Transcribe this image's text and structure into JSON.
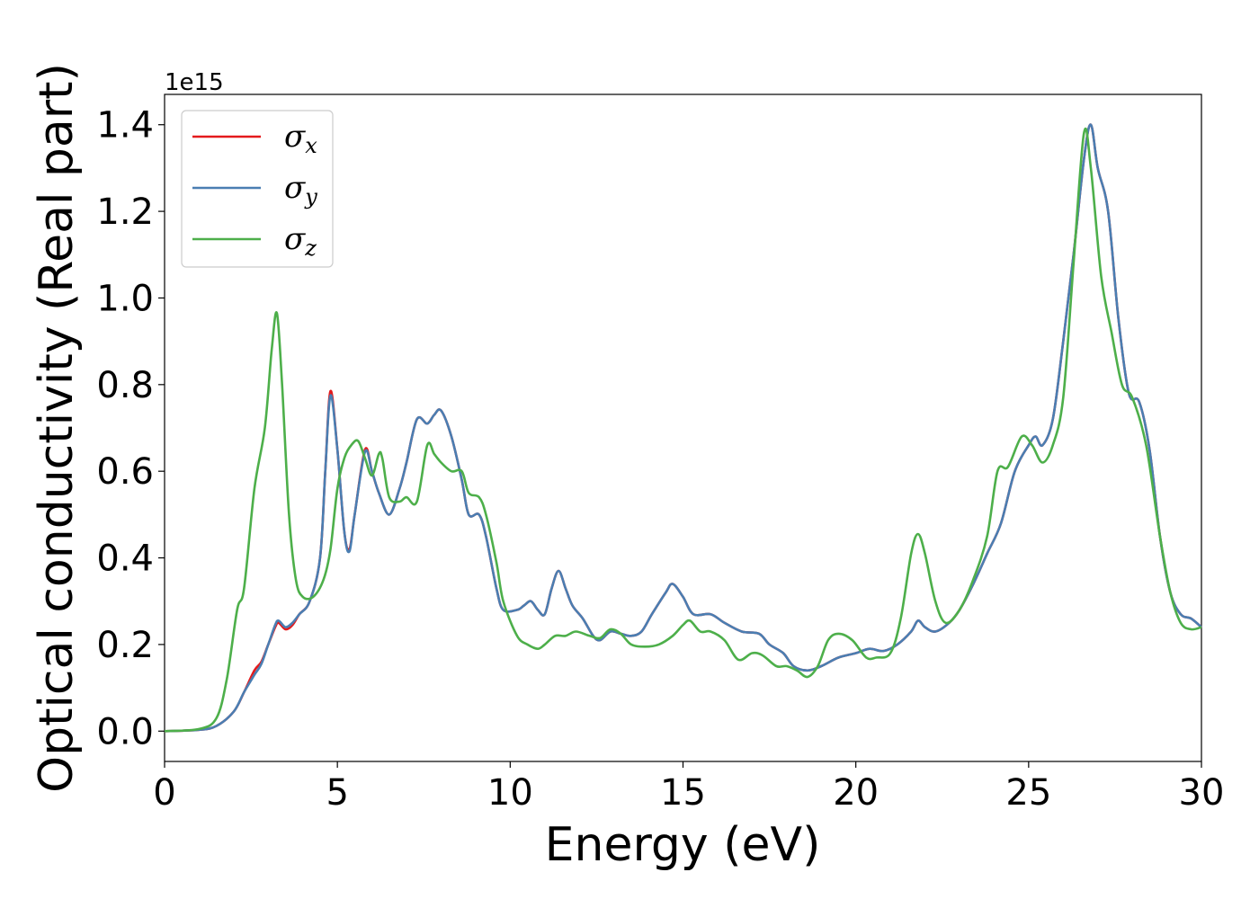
{
  "chart_data": {
    "type": "line",
    "xlabel": "Energy (eV)",
    "ylabel": "Optical conductivity (Real part)",
    "y_offset_label": "1e15",
    "xlim": [
      0,
      30
    ],
    "ylim": [
      -0.07,
      1.47
    ],
    "xticks": [
      0,
      5,
      10,
      15,
      20,
      25,
      30
    ],
    "xtick_labels": [
      "0",
      "5",
      "10",
      "15",
      "20",
      "25",
      "30"
    ],
    "yticks": [
      0.0,
      0.2,
      0.4,
      0.6,
      0.8,
      1.0,
      1.2,
      1.4
    ],
    "ytick_labels": [
      "0.0",
      "0.2",
      "0.4",
      "0.6",
      "0.8",
      "1.0",
      "1.2",
      "1.4"
    ],
    "grid": false,
    "legend_position": "top-left",
    "series": [
      {
        "name": "σx",
        "legend_symbol": "σ",
        "legend_sub": "x",
        "color": "#e41a1c",
        "points": [
          [
            0,
            0
          ],
          [
            1,
            0.003
          ],
          [
            1.5,
            0.012
          ],
          [
            2,
            0.045
          ],
          [
            2.3,
            0.09
          ],
          [
            2.6,
            0.14
          ],
          [
            2.8,
            0.16
          ],
          [
            3.0,
            0.2
          ],
          [
            3.2,
            0.24
          ],
          [
            3.3,
            0.25
          ],
          [
            3.5,
            0.235
          ],
          [
            3.7,
            0.245
          ],
          [
            3.9,
            0.27
          ],
          [
            4.2,
            0.3
          ],
          [
            4.5,
            0.4
          ],
          [
            4.65,
            0.6
          ],
          [
            4.8,
            0.785
          ],
          [
            5.0,
            0.65
          ],
          [
            5.2,
            0.46
          ],
          [
            5.35,
            0.42
          ],
          [
            5.5,
            0.5
          ],
          [
            5.8,
            0.65
          ],
          [
            6.0,
            0.6
          ],
          [
            6.2,
            0.55
          ],
          [
            6.5,
            0.5
          ],
          [
            6.8,
            0.56
          ],
          [
            7.0,
            0.62
          ],
          [
            7.3,
            0.72
          ],
          [
            7.6,
            0.71
          ],
          [
            7.8,
            0.73
          ],
          [
            8.0,
            0.74
          ],
          [
            8.3,
            0.68
          ],
          [
            8.6,
            0.58
          ],
          [
            8.8,
            0.5
          ],
          [
            9.1,
            0.5
          ],
          [
            9.3,
            0.45
          ],
          [
            9.6,
            0.33
          ],
          [
            9.8,
            0.28
          ],
          [
            10.2,
            0.28
          ],
          [
            10.4,
            0.29
          ],
          [
            10.6,
            0.3
          ],
          [
            10.8,
            0.28
          ],
          [
            11.0,
            0.27
          ],
          [
            11.2,
            0.33
          ],
          [
            11.4,
            0.37
          ],
          [
            11.6,
            0.33
          ],
          [
            11.8,
            0.29
          ],
          [
            12.1,
            0.26
          ],
          [
            12.4,
            0.22
          ],
          [
            12.6,
            0.21
          ],
          [
            12.9,
            0.23
          ],
          [
            13.2,
            0.225
          ],
          [
            13.5,
            0.22
          ],
          [
            13.8,
            0.23
          ],
          [
            14.1,
            0.27
          ],
          [
            14.5,
            0.32
          ],
          [
            14.7,
            0.34
          ],
          [
            15.0,
            0.31
          ],
          [
            15.3,
            0.27
          ],
          [
            15.8,
            0.27
          ],
          [
            16.2,
            0.25
          ],
          [
            16.7,
            0.23
          ],
          [
            17.2,
            0.225
          ],
          [
            17.5,
            0.2
          ],
          [
            17.9,
            0.18
          ],
          [
            18.2,
            0.15
          ],
          [
            18.6,
            0.14
          ],
          [
            19.0,
            0.15
          ],
          [
            19.5,
            0.17
          ],
          [
            20.0,
            0.18
          ],
          [
            20.4,
            0.19
          ],
          [
            20.8,
            0.185
          ],
          [
            21.2,
            0.2
          ],
          [
            21.6,
            0.23
          ],
          [
            21.8,
            0.255
          ],
          [
            22.0,
            0.24
          ],
          [
            22.3,
            0.23
          ],
          [
            22.7,
            0.25
          ],
          [
            23.0,
            0.28
          ],
          [
            23.4,
            0.34
          ],
          [
            23.8,
            0.41
          ],
          [
            24.2,
            0.48
          ],
          [
            24.6,
            0.6
          ],
          [
            25.0,
            0.66
          ],
          [
            25.2,
            0.68
          ],
          [
            25.4,
            0.66
          ],
          [
            25.7,
            0.72
          ],
          [
            26.0,
            0.9
          ],
          [
            26.3,
            1.1
          ],
          [
            26.6,
            1.32
          ],
          [
            26.8,
            1.4
          ],
          [
            27.0,
            1.3
          ],
          [
            27.3,
            1.2
          ],
          [
            27.6,
            0.95
          ],
          [
            27.9,
            0.78
          ],
          [
            28.2,
            0.76
          ],
          [
            28.5,
            0.65
          ],
          [
            28.8,
            0.45
          ],
          [
            29.1,
            0.32
          ],
          [
            29.4,
            0.27
          ],
          [
            29.7,
            0.26
          ],
          [
            30,
            0.24
          ]
        ]
      },
      {
        "name": "σy",
        "legend_symbol": "σ",
        "legend_sub": "y",
        "color": "#4a7eb2",
        "points": [
          [
            0,
            0
          ],
          [
            1,
            0.003
          ],
          [
            1.5,
            0.012
          ],
          [
            2,
            0.045
          ],
          [
            2.3,
            0.09
          ],
          [
            2.6,
            0.13
          ],
          [
            2.8,
            0.155
          ],
          [
            3.0,
            0.2
          ],
          [
            3.2,
            0.245
          ],
          [
            3.3,
            0.255
          ],
          [
            3.5,
            0.24
          ],
          [
            3.7,
            0.25
          ],
          [
            3.9,
            0.27
          ],
          [
            4.2,
            0.3
          ],
          [
            4.5,
            0.4
          ],
          [
            4.65,
            0.6
          ],
          [
            4.8,
            0.775
          ],
          [
            5.0,
            0.65
          ],
          [
            5.2,
            0.46
          ],
          [
            5.35,
            0.415
          ],
          [
            5.5,
            0.5
          ],
          [
            5.8,
            0.645
          ],
          [
            6.0,
            0.6
          ],
          [
            6.2,
            0.55
          ],
          [
            6.5,
            0.5
          ],
          [
            6.8,
            0.56
          ],
          [
            7.0,
            0.62
          ],
          [
            7.3,
            0.72
          ],
          [
            7.6,
            0.71
          ],
          [
            7.8,
            0.73
          ],
          [
            8.0,
            0.74
          ],
          [
            8.3,
            0.68
          ],
          [
            8.6,
            0.58
          ],
          [
            8.8,
            0.5
          ],
          [
            9.1,
            0.5
          ],
          [
            9.3,
            0.45
          ],
          [
            9.6,
            0.33
          ],
          [
            9.8,
            0.28
          ],
          [
            10.2,
            0.28
          ],
          [
            10.4,
            0.29
          ],
          [
            10.6,
            0.3
          ],
          [
            10.8,
            0.28
          ],
          [
            11.0,
            0.27
          ],
          [
            11.2,
            0.33
          ],
          [
            11.4,
            0.37
          ],
          [
            11.6,
            0.33
          ],
          [
            11.8,
            0.29
          ],
          [
            12.1,
            0.26
          ],
          [
            12.4,
            0.22
          ],
          [
            12.6,
            0.21
          ],
          [
            12.9,
            0.23
          ],
          [
            13.2,
            0.225
          ],
          [
            13.5,
            0.22
          ],
          [
            13.8,
            0.23
          ],
          [
            14.1,
            0.27
          ],
          [
            14.5,
            0.32
          ],
          [
            14.7,
            0.34
          ],
          [
            15.0,
            0.31
          ],
          [
            15.3,
            0.27
          ],
          [
            15.8,
            0.27
          ],
          [
            16.2,
            0.25
          ],
          [
            16.7,
            0.23
          ],
          [
            17.2,
            0.225
          ],
          [
            17.5,
            0.2
          ],
          [
            17.9,
            0.18
          ],
          [
            18.2,
            0.15
          ],
          [
            18.6,
            0.14
          ],
          [
            19.0,
            0.15
          ],
          [
            19.5,
            0.17
          ],
          [
            20.0,
            0.18
          ],
          [
            20.4,
            0.19
          ],
          [
            20.8,
            0.185
          ],
          [
            21.2,
            0.2
          ],
          [
            21.6,
            0.23
          ],
          [
            21.8,
            0.255
          ],
          [
            22.0,
            0.24
          ],
          [
            22.3,
            0.23
          ],
          [
            22.7,
            0.25
          ],
          [
            23.0,
            0.28
          ],
          [
            23.4,
            0.34
          ],
          [
            23.8,
            0.41
          ],
          [
            24.2,
            0.48
          ],
          [
            24.6,
            0.6
          ],
          [
            25.0,
            0.66
          ],
          [
            25.2,
            0.68
          ],
          [
            25.4,
            0.66
          ],
          [
            25.7,
            0.72
          ],
          [
            26.0,
            0.9
          ],
          [
            26.3,
            1.1
          ],
          [
            26.6,
            1.32
          ],
          [
            26.8,
            1.4
          ],
          [
            27.0,
            1.3
          ],
          [
            27.3,
            1.2
          ],
          [
            27.6,
            0.95
          ],
          [
            27.9,
            0.78
          ],
          [
            28.2,
            0.76
          ],
          [
            28.5,
            0.65
          ],
          [
            28.8,
            0.45
          ],
          [
            29.1,
            0.32
          ],
          [
            29.4,
            0.27
          ],
          [
            29.7,
            0.26
          ],
          [
            30,
            0.24
          ]
        ]
      },
      {
        "name": "σz",
        "legend_symbol": "σ",
        "legend_sub": "z",
        "color": "#4daf4a",
        "points": [
          [
            0,
            0
          ],
          [
            1,
            0.005
          ],
          [
            1.5,
            0.03
          ],
          [
            1.8,
            0.12
          ],
          [
            2.1,
            0.28
          ],
          [
            2.3,
            0.33
          ],
          [
            2.6,
            0.56
          ],
          [
            2.9,
            0.7
          ],
          [
            3.1,
            0.88
          ],
          [
            3.25,
            0.965
          ],
          [
            3.4,
            0.8
          ],
          [
            3.6,
            0.5
          ],
          [
            3.8,
            0.35
          ],
          [
            4.0,
            0.31
          ],
          [
            4.3,
            0.31
          ],
          [
            4.6,
            0.35
          ],
          [
            4.8,
            0.42
          ],
          [
            5.0,
            0.56
          ],
          [
            5.2,
            0.63
          ],
          [
            5.4,
            0.66
          ],
          [
            5.6,
            0.67
          ],
          [
            5.8,
            0.63
          ],
          [
            6.0,
            0.59
          ],
          [
            6.2,
            0.64
          ],
          [
            6.3,
            0.63
          ],
          [
            6.5,
            0.54
          ],
          [
            6.8,
            0.53
          ],
          [
            7.0,
            0.54
          ],
          [
            7.3,
            0.53
          ],
          [
            7.6,
            0.66
          ],
          [
            7.8,
            0.64
          ],
          [
            8.0,
            0.62
          ],
          [
            8.3,
            0.6
          ],
          [
            8.6,
            0.6
          ],
          [
            8.8,
            0.55
          ],
          [
            9.1,
            0.54
          ],
          [
            9.3,
            0.5
          ],
          [
            9.6,
            0.39
          ],
          [
            9.8,
            0.3
          ],
          [
            10.2,
            0.22
          ],
          [
            10.5,
            0.2
          ],
          [
            10.8,
            0.19
          ],
          [
            11.0,
            0.2
          ],
          [
            11.3,
            0.22
          ],
          [
            11.6,
            0.22
          ],
          [
            11.9,
            0.23
          ],
          [
            12.3,
            0.22
          ],
          [
            12.6,
            0.215
          ],
          [
            12.9,
            0.235
          ],
          [
            13.2,
            0.225
          ],
          [
            13.5,
            0.2
          ],
          [
            13.9,
            0.195
          ],
          [
            14.3,
            0.2
          ],
          [
            14.7,
            0.22
          ],
          [
            15.0,
            0.245
          ],
          [
            15.2,
            0.255
          ],
          [
            15.5,
            0.23
          ],
          [
            15.8,
            0.23
          ],
          [
            16.2,
            0.21
          ],
          [
            16.6,
            0.165
          ],
          [
            17.0,
            0.18
          ],
          [
            17.3,
            0.175
          ],
          [
            17.7,
            0.15
          ],
          [
            18.0,
            0.15
          ],
          [
            18.3,
            0.14
          ],
          [
            18.6,
            0.125
          ],
          [
            18.9,
            0.15
          ],
          [
            19.2,
            0.21
          ],
          [
            19.5,
            0.225
          ],
          [
            19.9,
            0.21
          ],
          [
            20.3,
            0.17
          ],
          [
            20.6,
            0.17
          ],
          [
            21.0,
            0.18
          ],
          [
            21.3,
            0.26
          ],
          [
            21.6,
            0.41
          ],
          [
            21.8,
            0.455
          ],
          [
            22.0,
            0.41
          ],
          [
            22.3,
            0.3
          ],
          [
            22.6,
            0.25
          ],
          [
            23.0,
            0.28
          ],
          [
            23.4,
            0.35
          ],
          [
            23.8,
            0.45
          ],
          [
            24.1,
            0.6
          ],
          [
            24.4,
            0.61
          ],
          [
            24.8,
            0.68
          ],
          [
            25.1,
            0.66
          ],
          [
            25.4,
            0.62
          ],
          [
            25.7,
            0.66
          ],
          [
            26.0,
            0.77
          ],
          [
            26.3,
            1.08
          ],
          [
            26.6,
            1.38
          ],
          [
            26.8,
            1.3
          ],
          [
            27.1,
            1.05
          ],
          [
            27.4,
            0.92
          ],
          [
            27.7,
            0.8
          ],
          [
            28.0,
            0.77
          ],
          [
            28.4,
            0.66
          ],
          [
            28.8,
            0.45
          ],
          [
            29.1,
            0.32
          ],
          [
            29.4,
            0.25
          ],
          [
            29.7,
            0.235
          ],
          [
            30,
            0.24
          ]
        ]
      }
    ]
  }
}
